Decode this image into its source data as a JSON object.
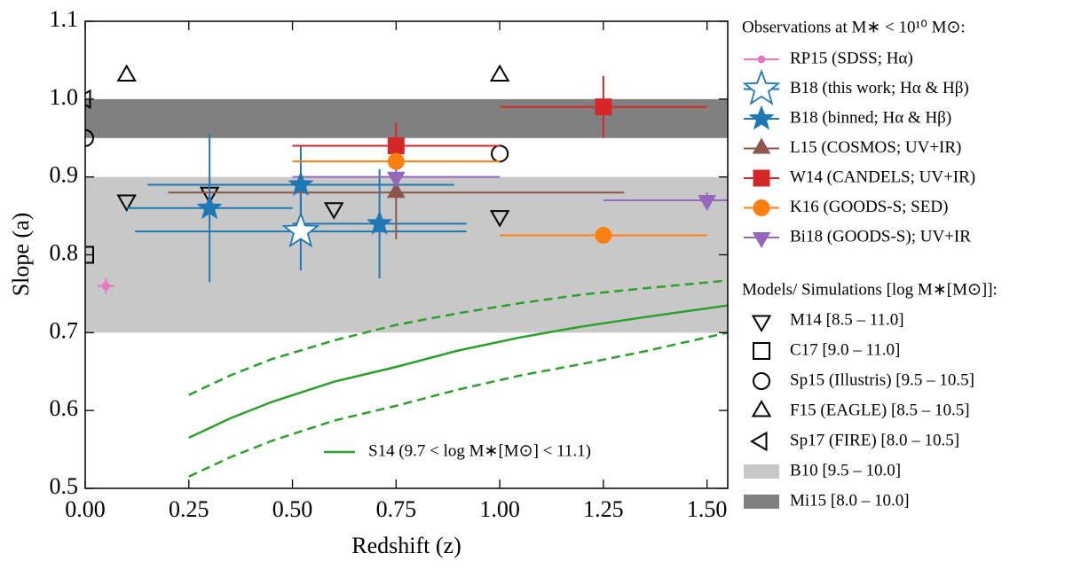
{
  "chart_data": {
    "type": "scatter",
    "xlabel": "Redshift (z)",
    "ylabel": "Slope (a)",
    "xlim": [
      0,
      1.55
    ],
    "ylim": [
      0.5,
      1.1
    ],
    "xticks": [
      {
        "value": 0,
        "label": "0.00"
      },
      {
        "value": 0.25,
        "label": "0.25"
      },
      {
        "value": 0.5,
        "label": "0.50"
      },
      {
        "value": 0.75,
        "label": "0.75"
      },
      {
        "value": 1,
        "label": "1.00"
      },
      {
        "value": 1.25,
        "label": "1.25"
      },
      {
        "value": 1.5,
        "label": "1.50"
      }
    ],
    "yticks": [
      0.5,
      0.6,
      0.7,
      0.8,
      0.9,
      {
        "value": 1,
        "label": "1.0"
      },
      1.1
    ],
    "observations_title": "Observations at M∗ < 10¹⁰ M⊙:",
    "models_title": "Models/ Simulations [log M∗[M⊙]]:",
    "series": [
      {
        "name": "RP15 (SDSS; Hα)",
        "color": "#e377c2",
        "marker": "dot",
        "filled": true,
        "x": [
          0.05
        ],
        "values": [
          0.76
        ],
        "xerr": [
          0.02
        ],
        "yerr": [
          0.01
        ]
      },
      {
        "name": "B18 (this work; Hα & Hβ)",
        "color": "#1f77b4",
        "marker": "bigstar",
        "filled": false,
        "x": [
          0.52
        ],
        "values": [
          0.83
        ],
        "xerr": [
          0.4
        ],
        "yerr": [
          0.05
        ]
      },
      {
        "name": "B18 (binned; Hα & Hβ)",
        "color": "#1f77b4",
        "marker": "star",
        "filled": true,
        "x": [
          0.3,
          0.52,
          0.71
        ],
        "values": [
          0.86,
          0.89,
          0.84
        ],
        "xerr": [
          0.2,
          0.37,
          0.21
        ],
        "yerr": [
          0.095,
          0.05,
          0.07
        ]
      },
      {
        "name": "L15 (COSMOS; UV+IR)",
        "color": "#8c564b",
        "marker": "up",
        "filled": true,
        "x": [
          0.75
        ],
        "values": [
          0.88
        ],
        "xerr": [
          0.55
        ],
        "yerr": [
          0.06
        ]
      },
      {
        "name": "W14 (CANDELS; UV+IR)",
        "color": "#d62728",
        "marker": "square",
        "filled": true,
        "x": [
          0.75,
          1.25
        ],
        "values": [
          0.94,
          0.99
        ],
        "xerr": [
          0.25,
          0.25
        ],
        "yerr": [
          0.03,
          0.04
        ]
      },
      {
        "name": "K16 (GOODS-S; SED)",
        "color": "#ff7f0e",
        "marker": "circle",
        "filled": true,
        "x": [
          0.75,
          1.25
        ],
        "values": [
          0.92,
          0.825
        ],
        "xerr": [
          0.25,
          0.25
        ],
        "yerr": [
          0.01,
          0.01
        ]
      },
      {
        "name": "Bi18 (GOODS-S); UV+IR",
        "color": "#9467bd",
        "marker": "down",
        "filled": true,
        "x": [
          0.75,
          1.5
        ],
        "values": [
          0.9,
          0.87
        ],
        "xerr": [
          0.25,
          0.25
        ],
        "yerr": [
          0.01,
          0.01
        ]
      }
    ],
    "models": [
      {
        "name": "M14 [8.5 – 11.0]",
        "color": "#000000",
        "marker": "down",
        "x": [
          0.1,
          0.3,
          0.6,
          1.0
        ],
        "values": [
          0.87,
          0.88,
          0.86,
          0.85
        ]
      },
      {
        "name": "C17 [9.0 – 11.0]",
        "color": "#000000",
        "marker": "square",
        "x": [
          0
        ],
        "values": [
          0.8
        ]
      },
      {
        "name": "Sp15 (Illustris) [9.5 – 10.5]",
        "color": "#000000",
        "marker": "circle",
        "x": [
          0,
          1.0
        ],
        "values": [
          0.95,
          0.93
        ]
      },
      {
        "name": "F15 (EAGLE) [8.5 – 10.5]",
        "color": "#000000",
        "marker": "up",
        "x": [
          0.1,
          1.0
        ],
        "values": [
          1.03,
          1.03
        ]
      },
      {
        "name": "Sp17 (FIRE) [8.0 – 10.5]",
        "color": "#000000",
        "marker": "left",
        "x": [
          0
        ],
        "values": [
          1.0
        ]
      }
    ],
    "bands": [
      {
        "name": "B10 [9.5 – 10.0]",
        "color": "#c8c8c8",
        "range": [
          0.7,
          0.9
        ]
      },
      {
        "name": "Mi15 [8.0 – 10.0]",
        "color": "#808080",
        "range": [
          0.95,
          1.0
        ]
      }
    ],
    "curves": [
      {
        "name": "S14 (9.7 < log M∗[M⊙] < 11.1)",
        "color": "#2ca02c",
        "x": [
          0.25,
          0.35,
          0.45,
          0.6,
          0.75,
          0.9,
          1.05,
          1.2,
          1.35,
          1.55
        ],
        "values": [
          0.565,
          0.59,
          0.611,
          0.637,
          0.656,
          0.677,
          0.694,
          0.708,
          0.72,
          0.735
        ],
        "upper": [
          0.62,
          0.645,
          0.666,
          0.69,
          0.71,
          0.725,
          0.738,
          0.749,
          0.757,
          0.767
        ],
        "lower": [
          0.515,
          0.54,
          0.561,
          0.587,
          0.606,
          0.627,
          0.645,
          0.66,
          0.676,
          0.7
        ]
      }
    ]
  }
}
